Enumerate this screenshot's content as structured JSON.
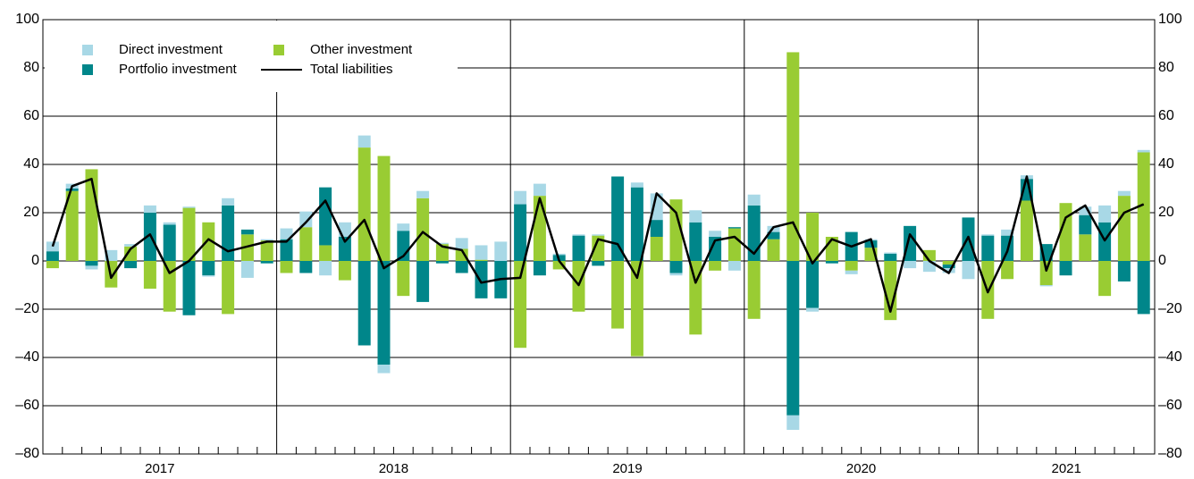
{
  "chart_data": {
    "type": "bar",
    "stacked": true,
    "categories": [
      null,
      null,
      null,
      null,
      null,
      null,
      null,
      null,
      null,
      null,
      null,
      null,
      null,
      null,
      null,
      null,
      null,
      null,
      null,
      null,
      null,
      null,
      null,
      null,
      null,
      null,
      null,
      null,
      null,
      null,
      null,
      null,
      null,
      null,
      null,
      null,
      null,
      null,
      null,
      null,
      null,
      null,
      null,
      null,
      null,
      null,
      null,
      null,
      null,
      null,
      null,
      null,
      null,
      null,
      null,
      null,
      null
    ],
    "years": [
      "2017",
      "2018",
      "2019",
      "2020",
      "2021"
    ],
    "series": [
      {
        "name": "Other investment",
        "color": "#99cc33",
        "values": [
          -3,
          29,
          38,
          -11,
          6,
          -11.5,
          -21,
          22,
          16,
          -22,
          11,
          8.5,
          -5,
          14,
          6.5,
          -8,
          47,
          43.5,
          -14.5,
          26,
          7,
          5,
          0.5,
          0,
          -36,
          27,
          -3.5,
          -21,
          10.5,
          -28,
          -39.5,
          10,
          25.5,
          -30.5,
          -4,
          13.5,
          -24,
          9,
          86.5,
          20,
          10,
          -4,
          5.5,
          -24.5,
          0,
          4.5,
          -1.5,
          0,
          -24,
          -7.5,
          25,
          -10,
          24,
          11,
          -14.5,
          27,
          45
        ]
      },
      {
        "name": "Portfolio investment",
        "color": "#00868a",
        "values": [
          4,
          1,
          -2,
          0,
          -3,
          20,
          15,
          -22.5,
          -6,
          23,
          2,
          -1,
          9,
          -5,
          24,
          10,
          -35,
          -43,
          12.5,
          -17,
          -1,
          -5,
          -15.5,
          -15.5,
          23.5,
          -6,
          2.5,
          10.5,
          -2,
          35,
          30.5,
          7,
          -5,
          16,
          10,
          0.5,
          23,
          3,
          -64,
          -19.5,
          -1,
          12,
          3,
          3,
          14.5,
          0,
          -1.5,
          18,
          10.5,
          10.5,
          9,
          7,
          -6,
          8,
          16,
          -8.5,
          -22
        ]
      },
      {
        "name": "Direct investment",
        "color": "#a8d8e6",
        "values": [
          4,
          2,
          -1.5,
          4.5,
          1,
          3,
          1,
          0.5,
          -0.5,
          3,
          -7,
          0.5,
          4.5,
          6.5,
          -6,
          6,
          5,
          -3.5,
          3,
          3,
          0.5,
          4.5,
          6,
          8,
          5.5,
          5,
          0.5,
          0.5,
          0.5,
          0,
          2,
          11,
          -1,
          5,
          2.5,
          -4,
          4.5,
          2.5,
          -6,
          -1.5,
          0,
          -1.5,
          0.5,
          0.5,
          -3,
          -4.5,
          -2,
          -7.5,
          0.5,
          2.5,
          1.5,
          -0.5,
          0,
          3.5,
          7,
          2,
          1
        ]
      },
      {
        "name": "Total liabilities",
        "type": "line",
        "color": "#000000",
        "values": [
          6,
          31,
          34,
          -7,
          5,
          11,
          -5,
          0,
          9,
          4,
          6,
          8,
          8,
          16,
          25,
          8,
          17,
          -3,
          2,
          12,
          6,
          4.5,
          -9,
          -7.5,
          -7,
          26,
          0,
          -10,
          9,
          7,
          -7,
          28,
          20,
          -9,
          8.5,
          10,
          3,
          14,
          16,
          -1,
          9,
          6,
          9,
          -21,
          11,
          0,
          -5,
          10,
          -13,
          4,
          35,
          -4,
          18,
          23,
          8.5,
          20,
          23.5
        ]
      }
    ],
    "ylim": [
      -80,
      100
    ],
    "yticks": [
      {
        "value": -80,
        "label": "–80"
      },
      {
        "value": -60,
        "label": "–60"
      },
      {
        "value": -40,
        "label": "–40"
      },
      {
        "value": -20,
        "label": "–20"
      },
      0,
      20,
      40,
      60,
      80,
      100
    ],
    "y2lim": [
      -80,
      100
    ],
    "y2ticks": [
      {
        "value": -80,
        "label": "–80"
      },
      {
        "value": -60,
        "label": "–60"
      },
      {
        "value": -40,
        "label": "–40"
      },
      {
        "value": -20,
        "label": "–20"
      },
      0,
      20,
      40,
      60,
      80,
      100
    ],
    "grid": true,
    "legend": "top-left"
  }
}
